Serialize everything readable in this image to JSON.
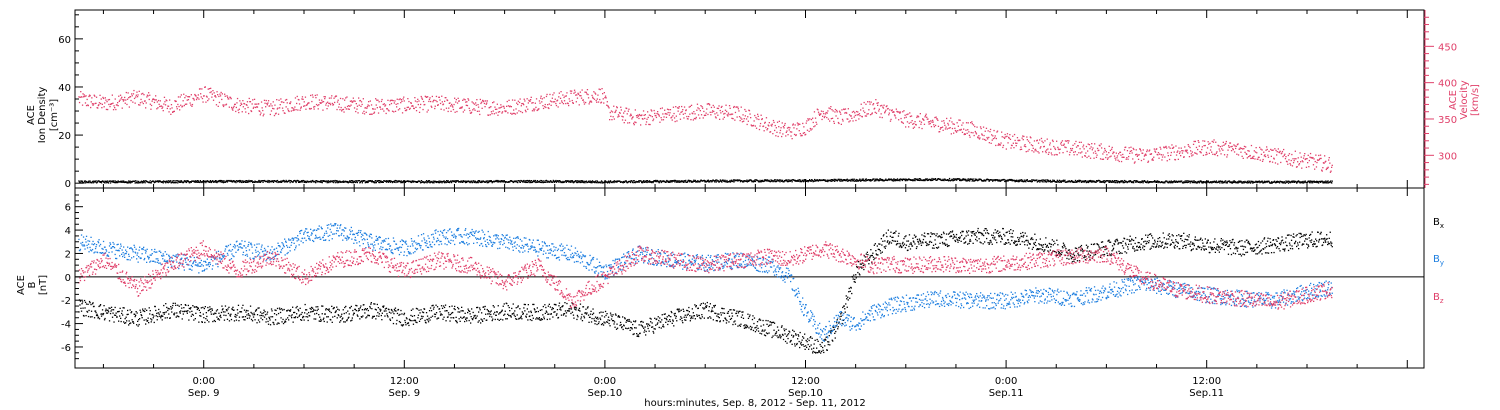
{
  "colors": {
    "black": "#000000",
    "velocity": "#e0406a",
    "by": "#1e7fe0",
    "bz": "#e0406a",
    "bx": "#000000"
  },
  "x_axis": {
    "caption": "hours:minutes, Sep.  8, 2012 - Sep. 11, 2012",
    "ticks": [
      {
        "hours": 0,
        "time": "0:00",
        "day": "Sep. 9"
      },
      {
        "hours": 12,
        "time": "12:00",
        "day": "Sep. 9"
      },
      {
        "hours": 24,
        "time": "0:00",
        "day": "Sep.10"
      },
      {
        "hours": 36,
        "time": "12:00",
        "day": "Sep.10"
      },
      {
        "hours": 48,
        "time": "0:00",
        "day": "Sep.11"
      },
      {
        "hours": 60,
        "time": "12:00",
        "day": "Sep.11"
      }
    ]
  },
  "chart_data": [
    {
      "type": "scatter",
      "panel": "top",
      "xlim_hours": [
        -7.7,
        73
      ],
      "ylabel_left": [
        "ACE",
        "Ion Density",
        "[cm⁻³]"
      ],
      "ylabel_right": [
        "ACE",
        "Velocity",
        "[km/s]"
      ],
      "ylim_left": [
        -2,
        72
      ],
      "ylim_right": [
        255,
        500
      ],
      "yticks_left": [
        0,
        20,
        40,
        60
      ],
      "yticks_right": [
        300,
        350,
        400,
        450
      ],
      "series": [
        {
          "axis": "left",
          "color": "#000000",
          "x": [
            -7.5,
            -4,
            0,
            4,
            8,
            12,
            16,
            20,
            24,
            28,
            32,
            36,
            40,
            44,
            48,
            52,
            56,
            60,
            64,
            67.5
          ],
          "y": [
            0.8,
            0.8,
            0.9,
            1.0,
            0.9,
            0.9,
            0.9,
            1.0,
            0.8,
            1.0,
            1.2,
            1.3,
            1.6,
            1.8,
            1.4,
            1.0,
            0.9,
            0.8,
            0.7,
            0.8
          ]
        },
        {
          "axis": "right",
          "color": "#e0406a",
          "x": [
            -7.5,
            -6,
            -4,
            -2,
            0,
            2,
            4,
            6,
            8,
            10,
            12,
            14,
            16,
            18,
            20,
            22,
            23.8,
            24.2,
            26,
            28,
            30,
            32,
            34,
            35,
            36,
            37,
            38,
            39,
            40,
            42,
            44,
            46,
            48,
            50,
            52,
            54,
            56,
            58,
            60,
            62,
            64,
            66,
            67.5
          ],
          "y": [
            378,
            372,
            380,
            368,
            385,
            370,
            365,
            375,
            372,
            368,
            370,
            372,
            368,
            366,
            374,
            380,
            384,
            360,
            352,
            358,
            362,
            358,
            340,
            333,
            340,
            362,
            352,
            358,
            368,
            350,
            344,
            336,
            320,
            314,
            310,
            305,
            300,
            305,
            312,
            308,
            300,
            293,
            288
          ]
        }
      ]
    },
    {
      "type": "scatter",
      "panel": "bottom",
      "xlim_hours": [
        -7.7,
        73
      ],
      "ylabel": [
        "ACE",
        "B",
        "[nT]"
      ],
      "ylim": [
        -7.8,
        7.6
      ],
      "yticks": [
        -6,
        -4,
        -2,
        0,
        2,
        4,
        6
      ],
      "series": [
        {
          "name": "Bx",
          "color": "#000000",
          "x": [
            -7.5,
            -6,
            -4,
            -2,
            0,
            2,
            4,
            6,
            8,
            10,
            12,
            14,
            16,
            18,
            20,
            22,
            24,
            26,
            28,
            30,
            32,
            34,
            35,
            36,
            37,
            38,
            39,
            40,
            41,
            42,
            44,
            46,
            48,
            50,
            52,
            54,
            56,
            58,
            60,
            62,
            64,
            66,
            67.5
          ],
          "y": [
            -2.5,
            -3.0,
            -3.5,
            -2.8,
            -3.2,
            -3.0,
            -3.4,
            -3.0,
            -3.2,
            -2.8,
            -3.5,
            -3.0,
            -3.3,
            -2.9,
            -3.0,
            -2.8,
            -3.5,
            -4.5,
            -3.5,
            -2.8,
            -3.5,
            -4.5,
            -5.0,
            -5.5,
            -6.2,
            -4.0,
            0.5,
            2.0,
            3.5,
            3.0,
            3.2,
            3.5,
            3.5,
            3.0,
            2.0,
            2.5,
            3.0,
            3.2,
            2.8,
            2.5,
            2.8,
            3.2,
            3.3
          ]
        },
        {
          "name": "By",
          "color": "#1e7fe0",
          "x": [
            -7.5,
            -6,
            -4,
            -2,
            0,
            2,
            4,
            6,
            8,
            10,
            12,
            14,
            16,
            18,
            20,
            22,
            24,
            26,
            28,
            30,
            32,
            34,
            35,
            36,
            37,
            38,
            39,
            40,
            41,
            42,
            44,
            46,
            48,
            50,
            52,
            54,
            56,
            58,
            60,
            62,
            64,
            66,
            67.5
          ],
          "y": [
            3.0,
            2.5,
            2.0,
            1.5,
            1.0,
            2.5,
            2.0,
            3.5,
            4.0,
            3.0,
            2.5,
            3.5,
            3.5,
            3.0,
            2.5,
            2.0,
            0.5,
            2.0,
            1.5,
            1.2,
            1.5,
            1.0,
            0.0,
            -3.0,
            -5.0,
            -3.5,
            -4.0,
            -3.0,
            -2.5,
            -2.2,
            -1.8,
            -2.0,
            -2.0,
            -1.5,
            -1.8,
            -1.2,
            -0.5,
            -1.0,
            -1.5,
            -1.8,
            -2.0,
            -1.2,
            -0.8
          ]
        },
        {
          "name": "Bz",
          "color": "#e0406a",
          "x": [
            -7.5,
            -6,
            -4,
            -2,
            0,
            2,
            4,
            6,
            8,
            10,
            12,
            14,
            16,
            18,
            20,
            22,
            24,
            26,
            28,
            30,
            32,
            34,
            35,
            36,
            37,
            38,
            39,
            40,
            41,
            42,
            44,
            46,
            48,
            50,
            52,
            54,
            56,
            58,
            60,
            62,
            64,
            66,
            67.5
          ],
          "y": [
            0.0,
            1.5,
            -1.0,
            1.0,
            2.5,
            0.5,
            1.8,
            0.0,
            1.5,
            2.0,
            0.5,
            1.5,
            1.0,
            -0.5,
            1.0,
            -2.0,
            0.0,
            2.0,
            1.5,
            1.0,
            1.5,
            1.8,
            1.5,
            2.0,
            2.5,
            2.0,
            1.5,
            1.0,
            1.2,
            1.0,
            1.2,
            1.0,
            1.2,
            1.5,
            1.8,
            2.0,
            0.0,
            -1.0,
            -1.5,
            -1.8,
            -2.2,
            -1.5,
            -1.0
          ]
        }
      ]
    }
  ]
}
